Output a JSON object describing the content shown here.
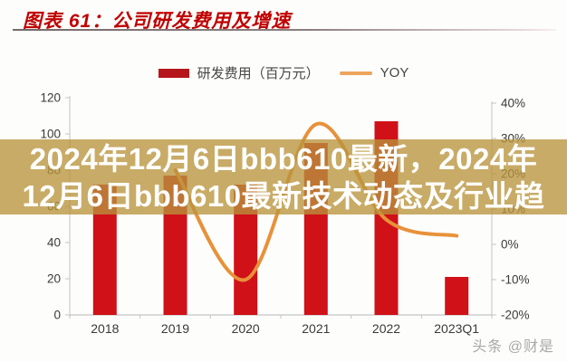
{
  "header": {
    "title": "图表 61：公司研发费用及增速"
  },
  "overlay": {
    "line1": "2024年12月6日bbb610最新，2024年",
    "line2": "12月6日bbb610最新技术动态及行业趋"
  },
  "watermark": "头条 @财是",
  "colors": {
    "title": "#c00000",
    "bar": "#d01118",
    "line": "#e8913a",
    "legend_bar_swatch": "#b5161c",
    "legend_line_swatch": "#eda45c",
    "overlay_band": "rgba(184,148,60,0.78)",
    "axis": "#c4c4c4",
    "tick_text": "#3a3a3a"
  },
  "chart_data": {
    "type": "bar-line-combo",
    "title": "公司研发费用及增速",
    "categories": [
      "2018",
      "2019",
      "2020",
      "2021",
      "2022",
      "2023Q1"
    ],
    "series": [
      {
        "name": "研发费用（百万元）",
        "type": "bar",
        "axis": "left",
        "color": "#d01118",
        "values": [
          72,
          77,
          72,
          95,
          107,
          21
        ]
      },
      {
        "name": "YOY",
        "type": "line",
        "axis": "right",
        "color": "#e8913a",
        "values": [
          null,
          21,
          -10,
          34,
          7,
          2.4
        ]
      }
    ],
    "left_axis": {
      "tick_values": [
        0,
        20,
        40,
        60,
        80,
        100,
        120
      ],
      "tick_labels": [
        "0",
        "20",
        "40",
        "60",
        "80",
        "100",
        "120"
      ],
      "range": [
        0,
        120
      ]
    },
    "right_axis": {
      "tick_values": [
        -20,
        -10,
        0,
        10,
        20,
        30,
        40
      ],
      "tick_labels": [
        "-20%",
        "-10%",
        "0%",
        "10%",
        "20%",
        "30%",
        "40%"
      ],
      "range": [
        -20,
        40
      ]
    },
    "grid": false,
    "legend_position": "top"
  }
}
